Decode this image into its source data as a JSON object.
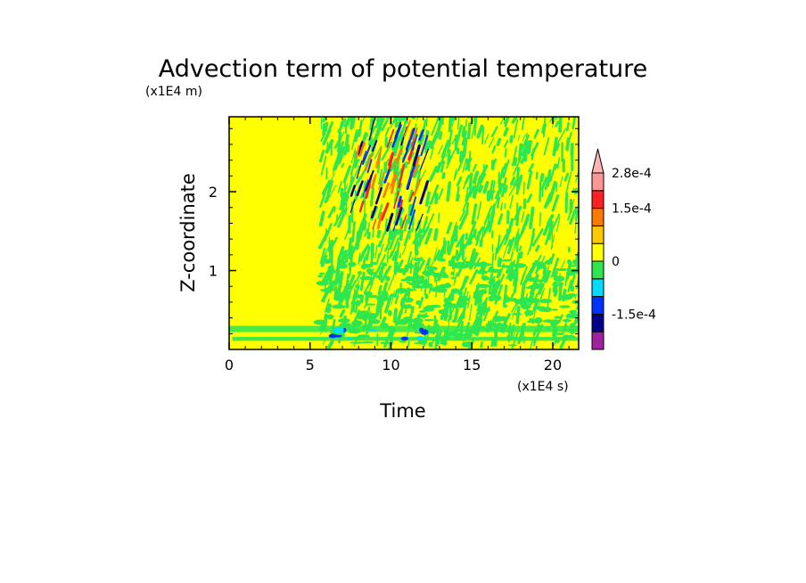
{
  "chart_data": {
    "type": "heatmap",
    "title": "Advection term of potential temperature",
    "xlabel": "Time",
    "ylabel": "Z-coordinate",
    "x_unit_label": "(x1E4 s)",
    "y_unit_label": "(x1E4 m)",
    "xlim": [
      0,
      21.6
    ],
    "ylim": [
      0,
      2.95
    ],
    "x_ticks": [
      0,
      5,
      10,
      15,
      20
    ],
    "x_tick_labels": [
      "0",
      "5",
      "10",
      "15",
      "20"
    ],
    "y_ticks": [
      1,
      2
    ],
    "y_tick_labels": [
      "1",
      "2"
    ],
    "colorbar": {
      "levels": [
        -0.00021,
        -0.00015,
        -0.0001,
        -5e-05,
        0,
        5e-05,
        0.0001,
        0.00015,
        0.00021,
        0.00028
      ],
      "colors": [
        "#a020a0",
        "#00008c",
        "#0032ff",
        "#00dcff",
        "#2de650",
        "#ffff00",
        "#ffc800",
        "#ff7800",
        "#ff2020",
        "#ff9696",
        "#ffb4b4"
      ],
      "labels": [
        "2.8e-4",
        "1.5e-4",
        "0",
        "-1.5e-4"
      ],
      "label_values": [
        0.00028,
        0.00015,
        0,
        -0.00015
      ],
      "extend": "max"
    },
    "field_description": {
      "quiet_period_end_time": 5.6,
      "near_surface_layer_top": 0.3,
      "wave_packet_time_range": [
        7.5,
        12.0
      ],
      "wave_packet_height_range": [
        1.5,
        2.7
      ]
    }
  }
}
